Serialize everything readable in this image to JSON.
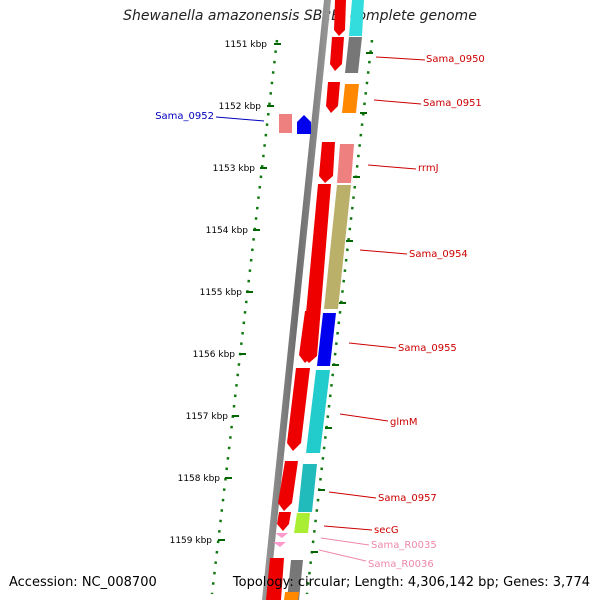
{
  "title": "Shewanella amazonensis SB2B, complete genome",
  "accession": "Accession: NC_008700",
  "summary": "Topology: circular; Length: 4,306,142 bp; Genes: 3,774",
  "ruler": [
    {
      "label": "1151 kbp"
    },
    {
      "label": "1152 kbp"
    },
    {
      "label": "1153 kbp"
    },
    {
      "label": "1154 kbp"
    },
    {
      "label": "1155 kbp"
    },
    {
      "label": "1156 kbp"
    },
    {
      "label": "1157 kbp"
    },
    {
      "label": "1158 kbp"
    },
    {
      "label": "1159 kbp"
    }
  ],
  "genes": [
    {
      "name": "Sama_0950",
      "color": "#cc0000",
      "strand": "forward"
    },
    {
      "name": "Sama_0951",
      "color": "#cc0000",
      "strand": "forward"
    },
    {
      "name": "Sama_0952",
      "color": "#0000bb",
      "strand": "reverse"
    },
    {
      "name": "rrmJ",
      "color": "#cc0000",
      "strand": "forward"
    },
    {
      "name": "Sama_0954",
      "color": "#cc0000",
      "strand": "forward"
    },
    {
      "name": "Sama_0955",
      "color": "#cc0000",
      "strand": "forward"
    },
    {
      "name": "glmM",
      "color": "#cc0000",
      "strand": "forward"
    },
    {
      "name": "Sama_0957",
      "color": "#cc0000",
      "strand": "forward"
    },
    {
      "name": "secG",
      "color": "#cc0000",
      "strand": "forward"
    },
    {
      "name": "Sama_R0035",
      "color": "#ee88aa",
      "strand": "forward"
    },
    {
      "name": "Sama_R0036",
      "color": "#ee88aa",
      "strand": "forward"
    }
  ],
  "colors": {
    "cds": "#ff0000",
    "rna": "#ff99cc",
    "ruler": "#006600",
    "axis": "#888888"
  }
}
